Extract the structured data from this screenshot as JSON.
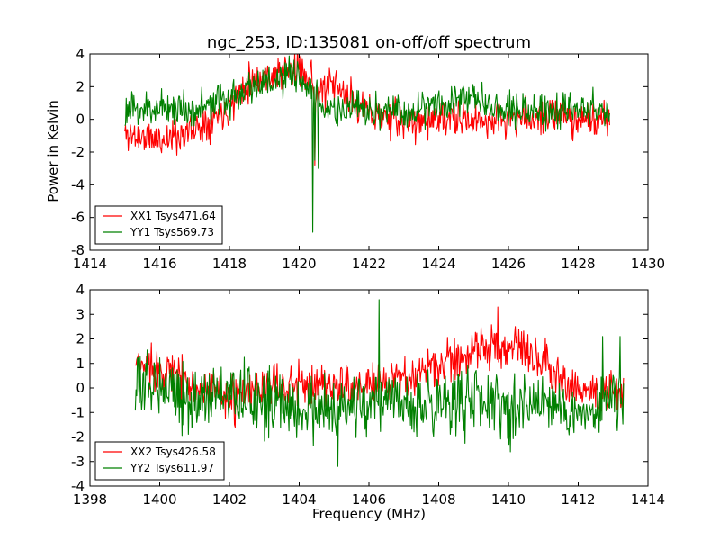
{
  "chart_data": [
    {
      "type": "line",
      "title": "ngc_253, ID:135081 on-off/off spectrum",
      "xlabel": "",
      "ylabel": "Power in Kelvin",
      "xlim": [
        1414,
        1430
      ],
      "ylim": [
        -8,
        4
      ],
      "xticks": [
        1414,
        1416,
        1418,
        1420,
        1422,
        1424,
        1426,
        1428,
        1430
      ],
      "yticks": [
        -8,
        -6,
        -4,
        -2,
        0,
        2,
        4
      ],
      "grid": false,
      "legend_position": "lower-left",
      "series": [
        {
          "name": "XX1 Tsys471.64",
          "color": "#ff0000",
          "x_range": [
            1415.0,
            1428.9
          ],
          "noise": 0.55,
          "seed": 11,
          "baseline": [
            [
              1415.0,
              -0.9
            ],
            [
              1416.0,
              -1.3
            ],
            [
              1417.0,
              -0.6
            ],
            [
              1418.0,
              0.8
            ],
            [
              1418.5,
              2.3
            ],
            [
              1419.0,
              2.6
            ],
            [
              1419.5,
              2.9
            ],
            [
              1420.0,
              3.1
            ],
            [
              1420.3,
              2.8
            ],
            [
              1420.5,
              1.5
            ],
            [
              1421.0,
              2.0
            ],
            [
              1421.5,
              1.2
            ],
            [
              1422.0,
              0.4
            ],
            [
              1423.0,
              -0.2
            ],
            [
              1424.0,
              0.0
            ],
            [
              1425.0,
              -0.1
            ],
            [
              1426.0,
              0.0
            ],
            [
              1427.0,
              0.2
            ],
            [
              1428.0,
              0.1
            ],
            [
              1428.9,
              -0.2
            ]
          ],
          "features": [
            [
              1420.45,
              -2.8
            ]
          ]
        },
        {
          "name": "YY1 Tsys569.73",
          "color": "#008000",
          "x_range": [
            1415.0,
            1428.9
          ],
          "noise": 0.55,
          "seed": 23,
          "baseline": [
            [
              1415.0,
              0.4
            ],
            [
              1416.0,
              0.8
            ],
            [
              1417.0,
              0.6
            ],
            [
              1418.0,
              1.2
            ],
            [
              1418.5,
              2.0
            ],
            [
              1419.0,
              2.3
            ],
            [
              1419.5,
              2.3
            ],
            [
              1420.0,
              2.8
            ],
            [
              1420.3,
              1.6
            ],
            [
              1420.6,
              0.9
            ],
            [
              1421.0,
              0.6
            ],
            [
              1422.0,
              0.5
            ],
            [
              1423.0,
              0.4
            ],
            [
              1424.0,
              1.1
            ],
            [
              1425.0,
              1.4
            ],
            [
              1426.0,
              0.7
            ],
            [
              1427.0,
              0.4
            ],
            [
              1428.0,
              0.8
            ],
            [
              1428.9,
              0.5
            ]
          ],
          "features": [
            [
              1420.38,
              -6.9
            ],
            [
              1420.45,
              -2.5
            ],
            [
              1420.55,
              -3.0
            ]
          ]
        }
      ]
    },
    {
      "type": "line",
      "title": "",
      "xlabel": "Frequency (MHz)",
      "ylabel": "",
      "xlim": [
        1398,
        1414
      ],
      "ylim": [
        -4,
        4
      ],
      "xticks": [
        1398,
        1400,
        1402,
        1404,
        1406,
        1408,
        1410,
        1412,
        1414
      ],
      "yticks": [
        -4,
        -3,
        -2,
        -1,
        0,
        1,
        2,
        3,
        4
      ],
      "grid": false,
      "legend_position": "lower-left",
      "series": [
        {
          "name": "XX2 Tsys426.58",
          "color": "#ff0000",
          "x_range": [
            1399.3,
            1413.3
          ],
          "noise": 0.45,
          "seed": 37,
          "baseline": [
            [
              1399.3,
              0.9
            ],
            [
              1400.0,
              0.9
            ],
            [
              1401.0,
              0.1
            ],
            [
              1402.0,
              -0.5
            ],
            [
              1403.0,
              0.0
            ],
            [
              1404.0,
              0.1
            ],
            [
              1405.0,
              0.2
            ],
            [
              1406.0,
              0.0
            ],
            [
              1407.0,
              0.4
            ],
            [
              1408.0,
              0.9
            ],
            [
              1409.0,
              1.5
            ],
            [
              1410.0,
              1.8
            ],
            [
              1411.0,
              1.2
            ],
            [
              1412.0,
              -0.1
            ],
            [
              1413.3,
              -0.3
            ]
          ],
          "features": [
            [
              1409.7,
              3.3
            ],
            [
              1410.3,
              2.4
            ]
          ]
        },
        {
          "name": "YY2 Tsys611.97",
          "color": "#008000",
          "x_range": [
            1399.3,
            1413.3
          ],
          "noise": 0.65,
          "seed": 53,
          "baseline": [
            [
              1399.3,
              -0.2
            ],
            [
              1400.0,
              0.4
            ],
            [
              1401.0,
              -0.6
            ],
            [
              1402.0,
              -0.2
            ],
            [
              1403.0,
              -0.6
            ],
            [
              1404.0,
              -0.8
            ],
            [
              1405.0,
              -1.1
            ],
            [
              1406.0,
              -0.5
            ],
            [
              1407.0,
              -0.8
            ],
            [
              1408.0,
              -0.6
            ],
            [
              1409.0,
              -0.4
            ],
            [
              1410.0,
              -0.8
            ],
            [
              1411.0,
              -0.5
            ],
            [
              1412.0,
              -1.0
            ],
            [
              1413.3,
              -0.4
            ]
          ],
          "features": [
            [
              1406.3,
              3.6
            ],
            [
              1405.1,
              -3.2
            ],
            [
              1412.7,
              2.1
            ],
            [
              1413.2,
              2.1
            ]
          ]
        }
      ]
    }
  ]
}
